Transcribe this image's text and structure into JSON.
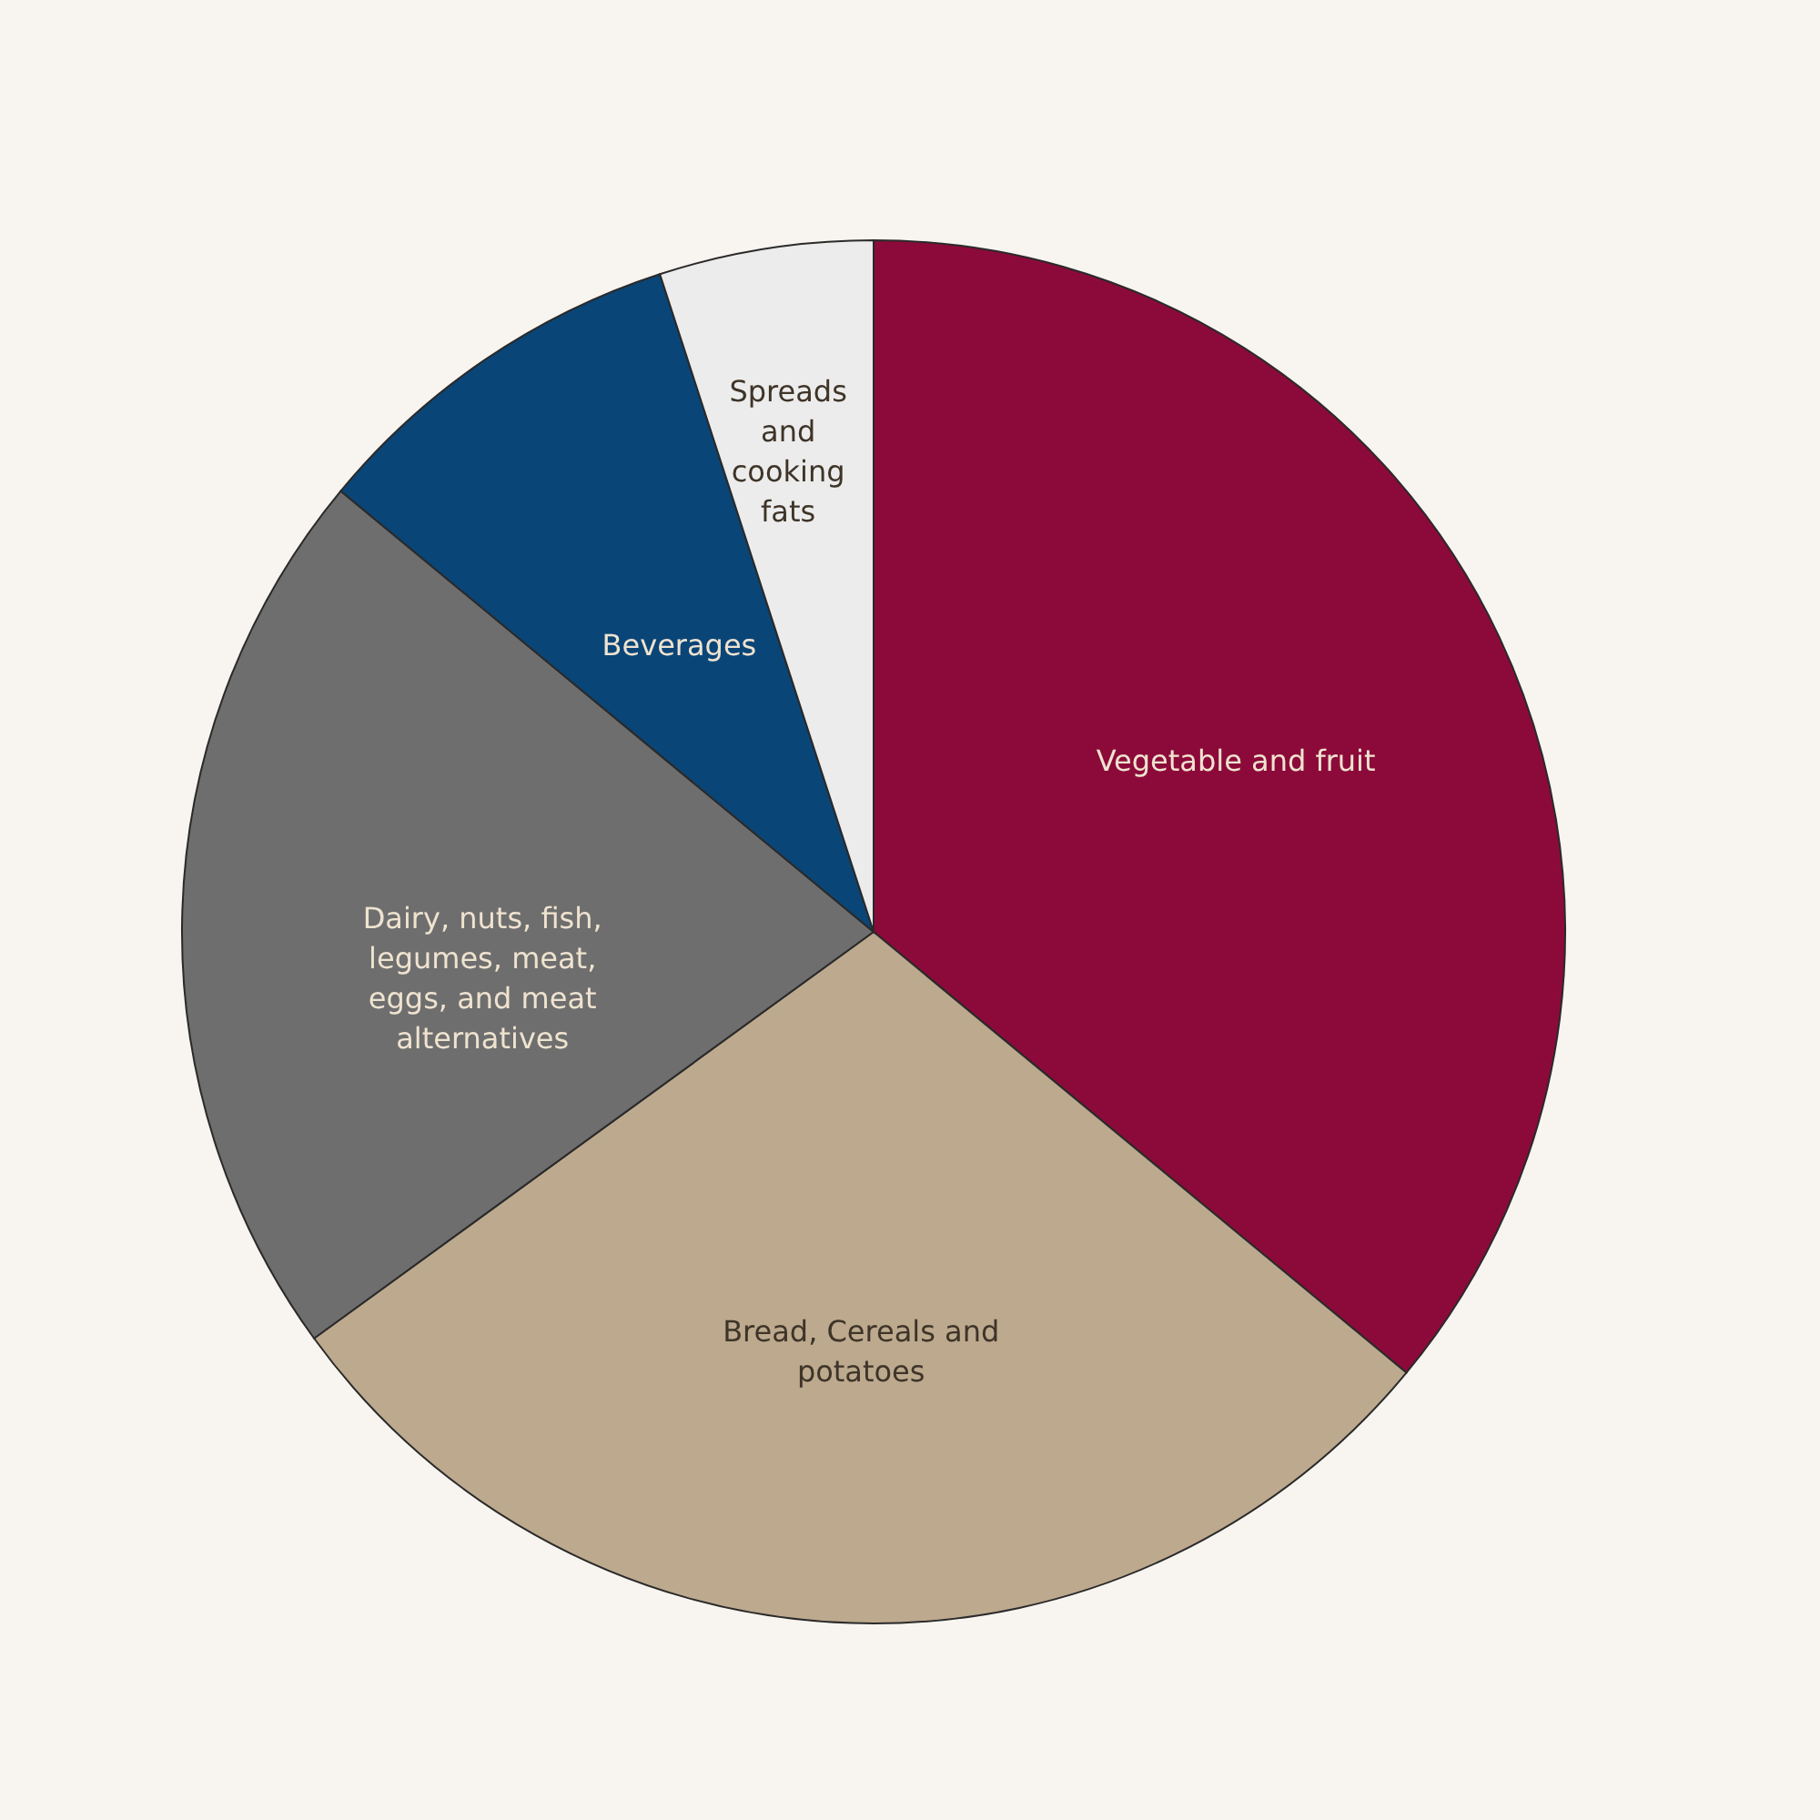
{
  "chart_data": {
    "type": "pie",
    "categories": [
      "Vegetable and fruit",
      "Bread, Cereals and potatoes",
      "Dairy, nuts, fish, legumes, meat, eggs, and meat alternatives",
      "Beverages",
      "Spreads and cooking fats"
    ],
    "values": [
      36,
      29,
      21,
      9,
      5
    ],
    "colors": [
      "#8c0a3a",
      "#bca98e",
      "#6e6e6e",
      "#0a4578",
      "#ececec"
    ]
  }
}
